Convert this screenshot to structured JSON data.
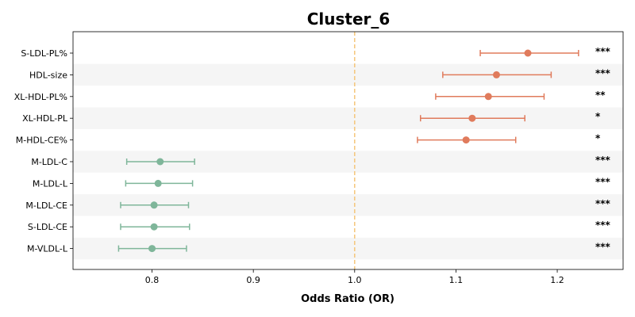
{
  "chart_data": {
    "type": "forest",
    "title": "Cluster_6",
    "xlabel": "Odds Ratio (OR)",
    "xlim": [
      0.722,
      1.265
    ],
    "xticks": [
      0.8,
      0.9,
      1.0,
      1.1,
      1.2
    ],
    "xtick_labels": [
      "0.8",
      "0.9",
      "1.0",
      "1.1",
      "1.2"
    ],
    "reference_line": 1.0,
    "colors": {
      "positive": "#E07B5C",
      "negative": "#7FB69A",
      "reference": "#F5C67A",
      "band": "#F5F5F5"
    },
    "rows": [
      {
        "label": "S-LDL-PL%",
        "or": 1.171,
        "lower": 1.124,
        "upper": 1.221,
        "sig": "***"
      },
      {
        "label": "HDL-size",
        "or": 1.14,
        "lower": 1.087,
        "upper": 1.194,
        "sig": "***"
      },
      {
        "label": "XL-HDL-PL%",
        "or": 1.132,
        "lower": 1.08,
        "upper": 1.187,
        "sig": "**"
      },
      {
        "label": "XL-HDL-PL",
        "or": 1.116,
        "lower": 1.065,
        "upper": 1.168,
        "sig": "*"
      },
      {
        "label": "M-HDL-CE%",
        "or": 1.11,
        "lower": 1.062,
        "upper": 1.159,
        "sig": "*"
      },
      {
        "label": "M-LDL-C",
        "or": 0.808,
        "lower": 0.775,
        "upper": 0.842,
        "sig": "***"
      },
      {
        "label": "M-LDL-L",
        "or": 0.806,
        "lower": 0.774,
        "upper": 0.84,
        "sig": "***"
      },
      {
        "label": "M-LDL-CE",
        "or": 0.802,
        "lower": 0.769,
        "upper": 0.836,
        "sig": "***"
      },
      {
        "label": "S-LDL-CE",
        "or": 0.802,
        "lower": 0.769,
        "upper": 0.837,
        "sig": "***"
      },
      {
        "label": "M-VLDL-L",
        "or": 0.8,
        "lower": 0.767,
        "upper": 0.834,
        "sig": "***"
      }
    ]
  }
}
